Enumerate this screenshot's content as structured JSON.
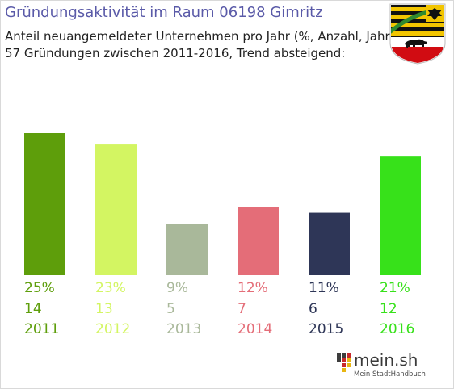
{
  "header": {
    "title": "Gründungsaktivität im Raum 06198 Gimritz",
    "subtitle": "Anteil neuangemeldeter Unternehmen pro Jahr (%, Anzahl, Jahr)",
    "summary": "57 Gründungen zwischen 2011-2016, Trend absteigend:"
  },
  "chart_data": {
    "type": "bar",
    "categories": [
      "2011",
      "2012",
      "2013",
      "2014",
      "2015",
      "2016"
    ],
    "percent_labels": [
      "25%",
      "23%",
      "9%",
      "12%",
      "11%",
      "21%"
    ],
    "count_labels": [
      "14",
      "13",
      "5",
      "7",
      "6",
      "12"
    ],
    "values": [
      25,
      23,
      9,
      12,
      11,
      21
    ],
    "counts": [
      14,
      13,
      5,
      7,
      6,
      12
    ],
    "colors": [
      "#5e9e0b",
      "#d3f562",
      "#a9b89a",
      "#e46d78",
      "#2e3657",
      "#37e11a"
    ],
    "legend": "none",
    "grid": false
  },
  "brand": {
    "name": "mein.sh",
    "tagline": "Mein StadtHandbuch",
    "dot_colors": [
      "#3d3d3d",
      "#c8282c",
      "#e8b612"
    ]
  },
  "crest": {
    "icon": "coat-of-arms-saxony-anhalt",
    "colors": [
      "#111111",
      "#f2c500",
      "#2f8a2f",
      "#d10c12"
    ]
  }
}
